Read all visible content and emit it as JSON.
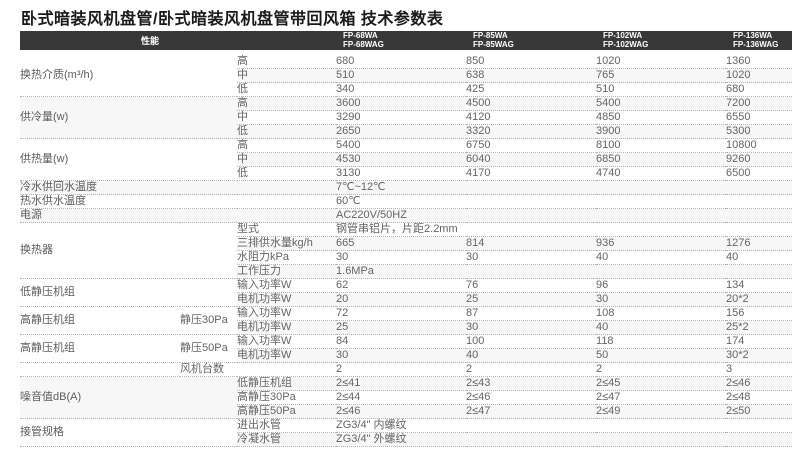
{
  "title": "卧式暗装风机盘管/卧式暗装风机盘管带回风箱 技术参数表",
  "colors": {
    "header_bg": "#383838",
    "header_text": "#ffffff",
    "body_text": "#666464",
    "dotted_line": "#b5b5b5",
    "stripe": "#f7f7f7"
  },
  "header": {
    "perf": "性能",
    "models": [
      "FP-68WA\nFP-68WAG",
      "FP-85WA\nFP-85WAG",
      "FP-102WA\nFP-102WAG",
      "FP-136WA\nFP-136WAG"
    ]
  },
  "rows": [
    {
      "cells": [
        {
          "t": "换热介质(m³/h)",
          "k": "label",
          "cs": 2,
          "rs": 3
        },
        {
          "t": "高",
          "k": "sub"
        },
        {
          "t": "680",
          "k": "val"
        },
        {
          "t": "850",
          "k": "val"
        },
        {
          "t": "1020",
          "k": "val"
        },
        {
          "t": "1360",
          "k": "val"
        }
      ]
    },
    {
      "cells": [
        {
          "t": "中",
          "k": "sub"
        },
        {
          "t": "510",
          "k": "val"
        },
        {
          "t": "638",
          "k": "val"
        },
        {
          "t": "765",
          "k": "val"
        },
        {
          "t": "1020",
          "k": "val"
        }
      ]
    },
    {
      "cells": [
        {
          "t": "低",
          "k": "sub"
        },
        {
          "t": "340",
          "k": "val"
        },
        {
          "t": "425",
          "k": "val"
        },
        {
          "t": "510",
          "k": "val"
        },
        {
          "t": "680",
          "k": "val"
        }
      ]
    },
    {
      "cells": [
        {
          "t": "供冷量(w)",
          "k": "label",
          "cs": 2,
          "rs": 3
        },
        {
          "t": "高",
          "k": "sub"
        },
        {
          "t": "3600",
          "k": "val"
        },
        {
          "t": "4500",
          "k": "val"
        },
        {
          "t": "5400",
          "k": "val"
        },
        {
          "t": "7200",
          "k": "val"
        }
      ]
    },
    {
      "cells": [
        {
          "t": "中",
          "k": "sub"
        },
        {
          "t": "3290",
          "k": "val"
        },
        {
          "t": "4120",
          "k": "val"
        },
        {
          "t": "4850",
          "k": "val"
        },
        {
          "t": "6550",
          "k": "val"
        }
      ]
    },
    {
      "cells": [
        {
          "t": "低",
          "k": "sub"
        },
        {
          "t": "2650",
          "k": "val"
        },
        {
          "t": "3320",
          "k": "val"
        },
        {
          "t": "3900",
          "k": "val"
        },
        {
          "t": "5300",
          "k": "val"
        }
      ]
    },
    {
      "cells": [
        {
          "t": "供热量(w)",
          "k": "label",
          "cs": 2,
          "rs": 3
        },
        {
          "t": "高",
          "k": "sub"
        },
        {
          "t": "5400",
          "k": "val"
        },
        {
          "t": "6750",
          "k": "val"
        },
        {
          "t": "8100",
          "k": "val"
        },
        {
          "t": "10800",
          "k": "val"
        }
      ]
    },
    {
      "cells": [
        {
          "t": "中",
          "k": "sub"
        },
        {
          "t": "4530",
          "k": "val"
        },
        {
          "t": "6040",
          "k": "val"
        },
        {
          "t": "6850",
          "k": "val"
        },
        {
          "t": "9260",
          "k": "val"
        }
      ]
    },
    {
      "cells": [
        {
          "t": "低",
          "k": "sub"
        },
        {
          "t": "3130",
          "k": "val"
        },
        {
          "t": "4170",
          "k": "val"
        },
        {
          "t": "4740",
          "k": "val"
        },
        {
          "t": "6500",
          "k": "val"
        }
      ]
    },
    {
      "cells": [
        {
          "t": "冷水供回水温度",
          "k": "label",
          "cs": 3
        },
        {
          "t": "7℃~12℃",
          "k": "sp297",
          "cs": 4
        }
      ]
    },
    {
      "cells": [
        {
          "t": "热水供水温度",
          "k": "label",
          "cs": 3
        },
        {
          "t": "60℃",
          "k": "sp297",
          "cs": 4
        }
      ]
    },
    {
      "cells": [
        {
          "t": "电源",
          "k": "label",
          "cs": 3
        },
        {
          "t": "AC220V/50HZ",
          "k": "sp297",
          "cs": 4
        }
      ]
    },
    {
      "cells": [
        {
          "t": "换热器",
          "k": "label",
          "cs": 2,
          "rs": 4
        },
        {
          "t": "型式",
          "k": "sub"
        },
        {
          "t": "钢管串铝片，片距2.2mm",
          "k": "sp107",
          "cs": 4
        }
      ]
    },
    {
      "cells": [
        {
          "t": "三排供水量kg/h",
          "k": "sub"
        },
        {
          "t": "665",
          "k": "val"
        },
        {
          "t": "814",
          "k": "val"
        },
        {
          "t": "936",
          "k": "val"
        },
        {
          "t": "1276",
          "k": "val"
        }
      ]
    },
    {
      "cells": [
        {
          "t": "水阻力kPa",
          "k": "sub"
        },
        {
          "t": "30",
          "k": "val"
        },
        {
          "t": "30",
          "k": "val"
        },
        {
          "t": "40",
          "k": "val"
        },
        {
          "t": "40",
          "k": "val"
        }
      ]
    },
    {
      "cells": [
        {
          "t": "工作压力",
          "k": "sub"
        },
        {
          "t": "1.6MPa",
          "k": "sp174",
          "cs": 4
        }
      ]
    },
    {
      "cells": [
        {
          "t": "低静压机组",
          "k": "label",
          "cs": 2,
          "rs": 2
        },
        {
          "t": "输入功率W",
          "k": "sub"
        },
        {
          "t": "62",
          "k": "val"
        },
        {
          "t": "76",
          "k": "val"
        },
        {
          "t": "96",
          "k": "val"
        },
        {
          "t": "134",
          "k": "val"
        }
      ]
    },
    {
      "cells": [
        {
          "t": "电机功率W",
          "k": "sub"
        },
        {
          "t": "20",
          "k": "val"
        },
        {
          "t": "25",
          "k": "val"
        },
        {
          "t": "30",
          "k": "val"
        },
        {
          "t": "20*2",
          "k": "val"
        }
      ]
    },
    {
      "cells": [
        {
          "t": "高静压机组",
          "k": "label",
          "rs": 2
        },
        {
          "t": "静压30Pa",
          "k": "mid",
          "rs": 2
        },
        {
          "t": "输入功率W",
          "k": "sub"
        },
        {
          "t": "72",
          "k": "val"
        },
        {
          "t": "87",
          "k": "val"
        },
        {
          "t": "108",
          "k": "val"
        },
        {
          "t": "156",
          "k": "val"
        }
      ]
    },
    {
      "cells": [
        {
          "t": "电机功率W",
          "k": "sub"
        },
        {
          "t": "25",
          "k": "val"
        },
        {
          "t": "30",
          "k": "val"
        },
        {
          "t": "40",
          "k": "val"
        },
        {
          "t": "25*2",
          "k": "val"
        }
      ]
    },
    {
      "cells": [
        {
          "t": "高静压机组",
          "k": "label",
          "rs": 2
        },
        {
          "t": "静压50Pa",
          "k": "mid",
          "rs": 2
        },
        {
          "t": "输入功率W",
          "k": "sub"
        },
        {
          "t": "84",
          "k": "val"
        },
        {
          "t": "100",
          "k": "val"
        },
        {
          "t": "118",
          "k": "val"
        },
        {
          "t": "174",
          "k": "val"
        }
      ]
    },
    {
      "cells": [
        {
          "t": "电机功率W",
          "k": "sub"
        },
        {
          "t": "30",
          "k": "val"
        },
        {
          "t": "40",
          "k": "val"
        },
        {
          "t": "50",
          "k": "val"
        },
        {
          "t": "30*2",
          "k": "val"
        }
      ]
    },
    {
      "cells": [
        {
          "t": "",
          "k": "label"
        },
        {
          "t": "风机台数",
          "k": "mid",
          "cs": 2
        },
        {
          "t": "2",
          "k": "val"
        },
        {
          "t": "2",
          "k": "val"
        },
        {
          "t": "2",
          "k": "val"
        },
        {
          "t": "3",
          "k": "val"
        }
      ]
    },
    {
      "cells": [
        {
          "t": "噪音值dB(A)",
          "k": "label",
          "cs": 2,
          "rs": 3
        },
        {
          "t": "低静压机组",
          "k": "sub"
        },
        {
          "t": "2≤41",
          "k": "val"
        },
        {
          "t": "2≤43",
          "k": "val"
        },
        {
          "t": "2≤45",
          "k": "val"
        },
        {
          "t": "2≤46",
          "k": "val"
        }
      ]
    },
    {
      "cells": [
        {
          "t": "高静压30Pa",
          "k": "sub"
        },
        {
          "t": "2≤44",
          "k": "val"
        },
        {
          "t": "2≤46",
          "k": "val"
        },
        {
          "t": "2≤47",
          "k": "val"
        },
        {
          "t": "2≤48",
          "k": "val"
        }
      ]
    },
    {
      "cells": [
        {
          "t": "高静压50Pa",
          "k": "sub"
        },
        {
          "t": "2≤46",
          "k": "val"
        },
        {
          "t": "2≤47",
          "k": "val"
        },
        {
          "t": "2≤49",
          "k": "val"
        },
        {
          "t": "2≤50",
          "k": "val"
        }
      ]
    },
    {
      "cells": [
        {
          "t": "接管规格",
          "k": "label",
          "cs": 2,
          "rs": 2
        },
        {
          "t": "进出水管",
          "k": "sub"
        },
        {
          "t": "ZG3/4\" 内螺纹",
          "k": "sp141",
          "cs": 4
        }
      ]
    },
    {
      "cells": [
        {
          "t": "冷凝水管",
          "k": "sub"
        },
        {
          "t": "ZG3/4\" 外螺纹",
          "k": "sp141",
          "cs": 4
        }
      ]
    }
  ]
}
